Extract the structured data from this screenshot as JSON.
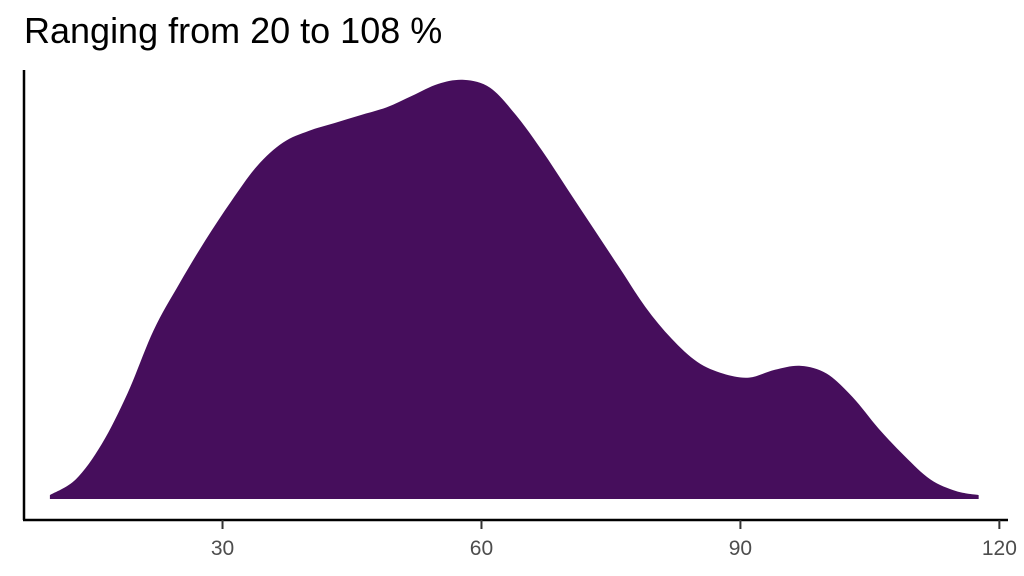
{
  "chart_data": {
    "type": "area",
    "title": "Ranging from 20 to 108 %",
    "xlabel": "",
    "ylabel": "",
    "xlim": [
      7,
      121
    ],
    "ylim": [
      0,
      1.08
    ],
    "x_ticks": [
      30,
      60,
      90,
      120
    ],
    "x_tick_labels": [
      "30",
      "60",
      "90",
      "120"
    ],
    "grid": false,
    "legend": "none",
    "fill_color": "#460e5c",
    "x": [
      10,
      13,
      16,
      19,
      22,
      25,
      28,
      31,
      34,
      37,
      40,
      43,
      46,
      49,
      52,
      55,
      58,
      61,
      64,
      67,
      70,
      73,
      76,
      79,
      82,
      85,
      88,
      91,
      94,
      97,
      100,
      103,
      106,
      109,
      112,
      115,
      117.6
    ],
    "y": [
      0.01,
      0.05,
      0.14,
      0.27,
      0.43,
      0.55,
      0.66,
      0.76,
      0.85,
      0.91,
      0.94,
      0.96,
      0.98,
      1.0,
      1.03,
      1.06,
      1.07,
      1.05,
      0.98,
      0.89,
      0.79,
      0.69,
      0.59,
      0.49,
      0.41,
      0.35,
      0.32,
      0.31,
      0.33,
      0.34,
      0.32,
      0.26,
      0.18,
      0.11,
      0.05,
      0.02,
      0.01
    ]
  }
}
